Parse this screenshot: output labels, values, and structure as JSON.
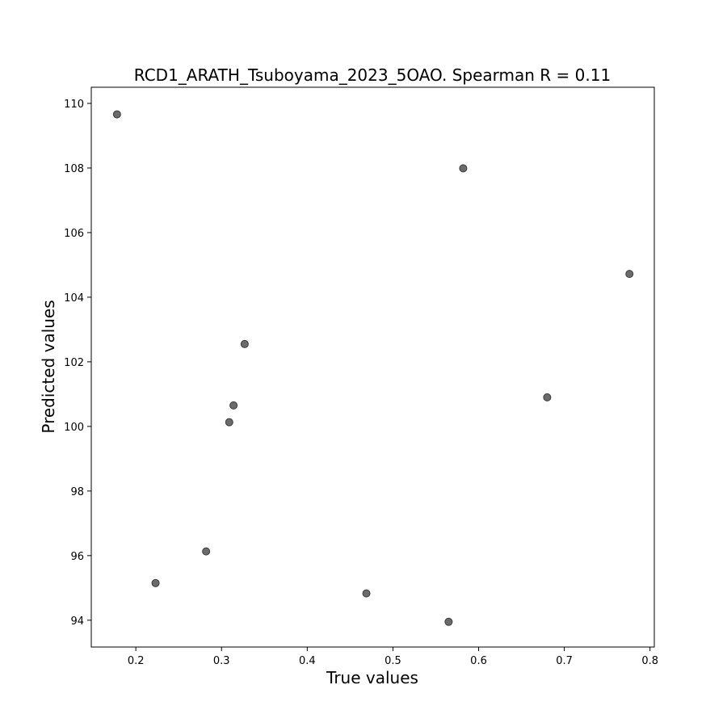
{
  "chart_data": {
    "type": "scatter",
    "title": "RCD1_ARATH_Tsuboyama_2023_5OAO. Spearman R = 0.11",
    "xlabel": "True values",
    "ylabel": "Predicted values",
    "xlim": [
      0.148,
      0.805
    ],
    "ylim": [
      93.17,
      110.5
    ],
    "xticks": [
      0.2,
      0.3,
      0.4,
      0.5,
      0.6,
      0.7,
      0.8
    ],
    "xtick_labels": [
      "0.2",
      "0.3",
      "0.4",
      "0.5",
      "0.6",
      "0.7",
      "0.8"
    ],
    "yticks": [
      94,
      96,
      98,
      100,
      102,
      104,
      106,
      108,
      110
    ],
    "ytick_labels": [
      "94",
      "96",
      "98",
      "100",
      "102",
      "104",
      "106",
      "108",
      "110"
    ],
    "grid": false,
    "marker_color": "#6b6b6b",
    "marker_edge_color": "#3a3a3a",
    "points": [
      {
        "x": 0.178,
        "y": 109.66
      },
      {
        "x": 0.582,
        "y": 107.99
      },
      {
        "x": 0.776,
        "y": 104.72
      },
      {
        "x": 0.327,
        "y": 102.55
      },
      {
        "x": 0.314,
        "y": 100.65
      },
      {
        "x": 0.68,
        "y": 100.9
      },
      {
        "x": 0.309,
        "y": 100.13
      },
      {
        "x": 0.282,
        "y": 96.13
      },
      {
        "x": 0.223,
        "y": 95.15
      },
      {
        "x": 0.469,
        "y": 94.83
      },
      {
        "x": 0.565,
        "y": 93.95
      }
    ]
  }
}
